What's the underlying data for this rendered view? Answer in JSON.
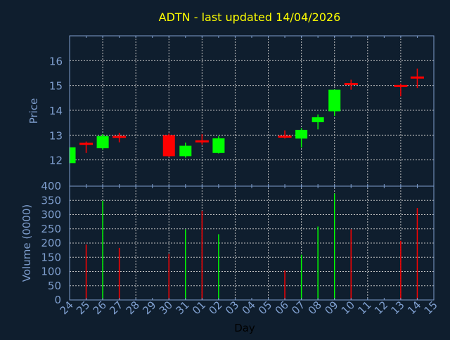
{
  "chart_data": {
    "type": "candlestick",
    "title": "ADTN - last updated 14/04/2026",
    "xlabel": "Day",
    "ylabel": "Price",
    "volume_label": "Volume (0000)",
    "ylim": [
      11,
      17
    ],
    "volume_ylim": [
      0,
      400
    ],
    "yticks": [
      12,
      13,
      14,
      15,
      16
    ],
    "volume_ticks": [
      0,
      50,
      100,
      150,
      200,
      250,
      300,
      350,
      400
    ],
    "x_tick_labels": [
      "24",
      "25",
      "26",
      "27",
      "28",
      "29",
      "30",
      "31",
      "01",
      "02",
      "03",
      "04",
      "05",
      "06",
      "07",
      "08",
      "09",
      "10",
      "11",
      "12",
      "13",
      "14",
      "15"
    ],
    "grid": true,
    "colors": {
      "background": "#0f1e2e",
      "up": "#00ff00",
      "down": "#ff0000",
      "title": "#ffff00",
      "axis": "#7f9fcf",
      "grid": "#c0c0c0",
      "xlabel": "#000000"
    },
    "candles": [
      {
        "day": "24",
        "open": 11.87,
        "high": 12.51,
        "low": 11.87,
        "close": 12.51,
        "volume": null
      },
      {
        "day": "25",
        "open": 12.65,
        "high": 12.74,
        "low": 12.28,
        "close": 12.65,
        "volume": 195
      },
      {
        "day": "26",
        "open": 12.47,
        "high": 13.04,
        "low": 12.41,
        "close": 12.96,
        "volume": 349
      },
      {
        "day": "27",
        "open": 12.93,
        "high": 13.09,
        "low": 12.71,
        "close": 12.93,
        "volume": 183
      },
      {
        "day": "30",
        "open": 13.0,
        "high": 13.06,
        "low": 12.13,
        "close": 12.15,
        "volume": 162
      },
      {
        "day": "31",
        "open": 12.15,
        "high": 12.7,
        "low": 12.09,
        "close": 12.57,
        "volume": 248
      },
      {
        "day": "01",
        "open": 12.75,
        "high": 13.04,
        "low": 12.62,
        "close": 12.75,
        "volume": 313
      },
      {
        "day": "02",
        "open": 12.28,
        "high": 12.96,
        "low": 12.26,
        "close": 12.87,
        "volume": 231
      },
      {
        "day": "06",
        "open": 12.94,
        "high": 13.19,
        "low": 12.86,
        "close": 12.94,
        "volume": 104
      },
      {
        "day": "07",
        "open": 12.86,
        "high": 13.28,
        "low": 12.5,
        "close": 13.21,
        "volume": 159
      },
      {
        "day": "08",
        "open": 13.52,
        "high": 13.83,
        "low": 13.23,
        "close": 13.72,
        "volume": 258
      },
      {
        "day": "09",
        "open": 13.96,
        "high": 14.84,
        "low": 13.77,
        "close": 14.83,
        "volume": 374
      },
      {
        "day": "10",
        "open": 15.06,
        "high": 15.23,
        "low": 14.83,
        "close": 15.06,
        "volume": 248
      },
      {
        "day": "13",
        "open": 14.98,
        "high": 15.07,
        "low": 14.56,
        "close": 14.98,
        "volume": 208
      },
      {
        "day": "14",
        "open": 15.32,
        "high": 15.68,
        "low": 14.9,
        "close": 15.32,
        "volume": 323
      }
    ]
  }
}
